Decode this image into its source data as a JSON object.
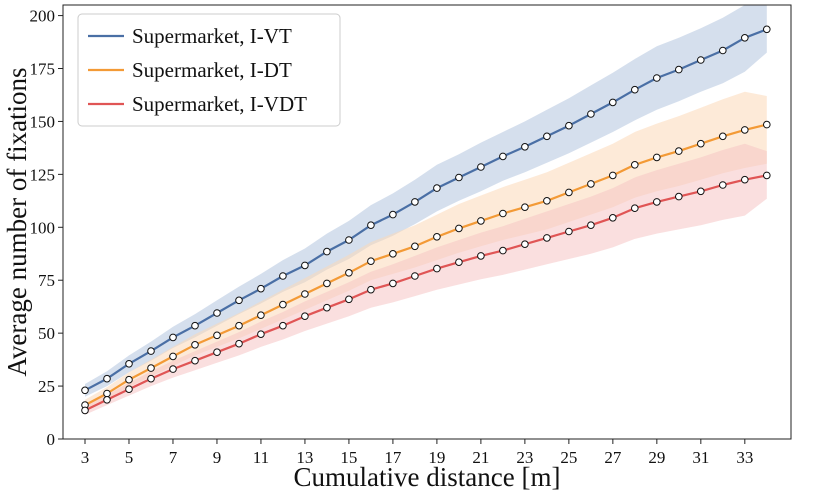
{
  "chart_data": {
    "type": "line",
    "title": "",
    "xlabel": "Cumulative distance [m]",
    "ylabel": "Average number of fixations",
    "xlim": [
      2.0,
      35.1
    ],
    "ylim": [
      0,
      205
    ],
    "xticks": [
      3,
      5,
      7,
      9,
      11,
      13,
      15,
      17,
      19,
      21,
      23,
      25,
      27,
      29,
      31,
      33
    ],
    "yticks": [
      0,
      25,
      50,
      75,
      100,
      125,
      150,
      175,
      200
    ],
    "grid": false,
    "legend_position": "top-left",
    "x": [
      3,
      4,
      5,
      6,
      7,
      8,
      9,
      10,
      11,
      12,
      13,
      14,
      15,
      16,
      17,
      18,
      19,
      20,
      21,
      22,
      23,
      24,
      25,
      26,
      27,
      28,
      29,
      30,
      31,
      32,
      33,
      34
    ],
    "series": [
      {
        "name": "Supermarket, I-VT",
        "color": "#4a6fa5",
        "band_color": "#b3c4de",
        "values": [
          23,
          28.5,
          35.5,
          41.5,
          48,
          53.5,
          59.5,
          65.5,
          71,
          77,
          82,
          88.5,
          94,
          101,
          106,
          112,
          118.5,
          123.5,
          128.5,
          133.5,
          138,
          143,
          148,
          153.5,
          159,
          165,
          170.5,
          174.5,
          179,
          183.5,
          189.5,
          193.5
        ],
        "lower": [
          20,
          25,
          31.5,
          37,
          43,
          48,
          53.5,
          59,
          64,
          69.5,
          74,
          80,
          85,
          91.5,
          96,
          101.5,
          107.5,
          112.5,
          117,
          122,
          126,
          130.5,
          135,
          140,
          145,
          150.5,
          155.5,
          159.5,
          164,
          168,
          173.5,
          182.5
        ],
        "upper": [
          26,
          32,
          39.5,
          46,
          53,
          59,
          65.5,
          72,
          78,
          84.5,
          90,
          97,
          103,
          110.5,
          116,
          122.5,
          129.5,
          134.5,
          140,
          145,
          150,
          155.5,
          161,
          167,
          173,
          179.5,
          185.5,
          189.5,
          194,
          199,
          205,
          205
        ]
      },
      {
        "name": "Supermarket, I-DT",
        "color": "#f39a36",
        "band_color": "#fbd9b8",
        "values": [
          16,
          21.5,
          28,
          33.5,
          39,
          44.5,
          49,
          53.5,
          58.5,
          63.5,
          68.5,
          73.5,
          78.5,
          84,
          87.5,
          91,
          95.5,
          99.5,
          103,
          106.5,
          109.5,
          112.5,
          116.5,
          120.5,
          124.5,
          129.5,
          133,
          136,
          139.5,
          143,
          146,
          148.5
        ],
        "lower": [
          13.5,
          18.5,
          24.5,
          29.5,
          34.5,
          39.5,
          43.5,
          47.5,
          52,
          56.5,
          61,
          65.5,
          70,
          75,
          78,
          81,
          84.5,
          88,
          91,
          94,
          96.5,
          99,
          102.5,
          106,
          109.5,
          114,
          117,
          119.5,
          122.5,
          125.5,
          128,
          130
        ],
        "upper": [
          18.5,
          24.5,
          31.5,
          37.5,
          43.5,
          49.5,
          54.5,
          59.5,
          65,
          70.5,
          76,
          81.5,
          87,
          93,
          97,
          101,
          106,
          111,
          115,
          119,
          122.5,
          126,
          130.5,
          135,
          139.5,
          145,
          149,
          152.5,
          156.5,
          160.5,
          164,
          162
        ]
      },
      {
        "name": "Supermarket, I-VDT",
        "color": "#e05555",
        "band_color": "#f5c4c4",
        "values": [
          13.5,
          18.5,
          23.5,
          28.5,
          33,
          37,
          41,
          45,
          49.5,
          53.5,
          58,
          62,
          66,
          70.5,
          73.5,
          77,
          80.5,
          83.5,
          86.5,
          89,
          92,
          95,
          98,
          101,
          104.5,
          109,
          112,
          114.5,
          117,
          120,
          122.5,
          124.5
        ],
        "lower": [
          11.5,
          16,
          20.5,
          25,
          29,
          32.5,
          36,
          39.5,
          43.5,
          47,
          51,
          54.5,
          58,
          62,
          64.5,
          67.5,
          70.5,
          73,
          75.5,
          77.5,
          80,
          82.5,
          85,
          87.5,
          90.5,
          94.5,
          97,
          99,
          101,
          103.5,
          105.5,
          113.5
        ],
        "upper": [
          15.5,
          21,
          26.5,
          32,
          37,
          41.5,
          46,
          50.5,
          55.5,
          60,
          65,
          69.5,
          74,
          79,
          82.5,
          86.5,
          90.5,
          94,
          97.5,
          100.5,
          104,
          107.5,
          111,
          114.5,
          118.5,
          123.5,
          127,
          130,
          133,
          136.5,
          139.5,
          136
        ]
      }
    ]
  }
}
